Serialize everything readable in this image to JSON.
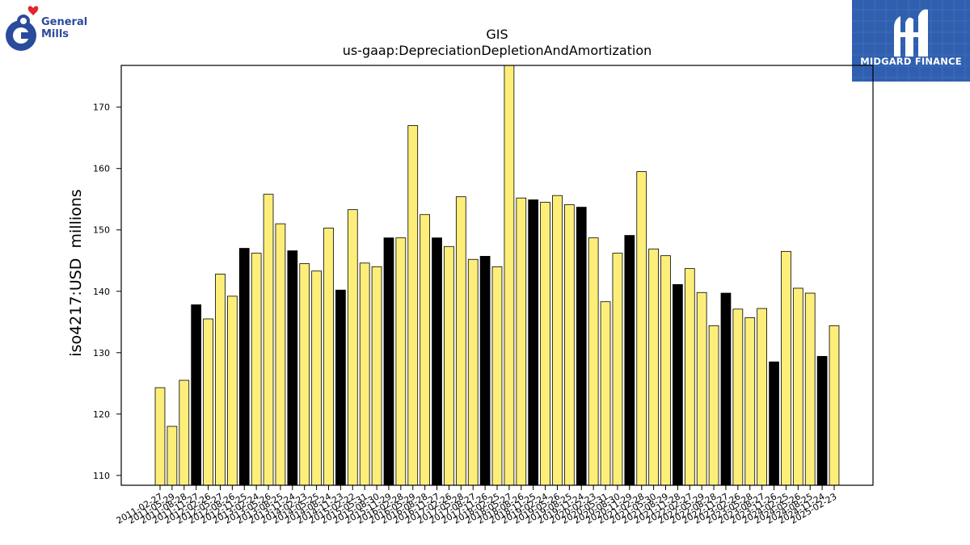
{
  "logos": {
    "left": {
      "line1": "General",
      "line2": "Mills",
      "icon": "general-mills-g-heart-logo",
      "color": "#2a4b9b",
      "heart_color": "#e2262f"
    },
    "right": {
      "text": "MIDGARD FINANCE",
      "icon": "midgard-finance-logo",
      "background": "#2f5fae"
    }
  },
  "chart_data": {
    "type": "bar",
    "title": "GIS",
    "subtitle": "us-gaap:DepreciationDepletionAndAmortization",
    "ylabel": "iso4217:USD  millions",
    "xlabel": "",
    "ylim": [
      108.4,
      176.8
    ],
    "yticks": [
      110,
      120,
      130,
      140,
      150,
      160,
      170
    ],
    "grid": false,
    "legend": "none",
    "colors": {
      "quarter": "#fdee7a",
      "annual": "#000000"
    },
    "categories": [
      "2011-02-27",
      "2011-05-29",
      "2011-08-28",
      "2011-11-27",
      "2012-02-26",
      "2012-05-27",
      "2012-08-26",
      "2012-11-25",
      "2013-02-24",
      "2013-05-26",
      "2013-08-25",
      "2013-11-24",
      "2014-02-23",
      "2014-05-25",
      "2014-08-24",
      "2014-11-23",
      "2015-02-22",
      "2015-05-31",
      "2015-08-30",
      "2015-11-29",
      "2016-02-28",
      "2016-05-29",
      "2016-08-28",
      "2016-11-27",
      "2017-02-26",
      "2017-05-28",
      "2017-08-27",
      "2017-11-26",
      "2018-02-25",
      "2018-05-27",
      "2018-08-26",
      "2018-11-25",
      "2019-02-24",
      "2019-05-26",
      "2019-08-25",
      "2019-11-24",
      "2020-02-23",
      "2020-05-31",
      "2020-08-30",
      "2020-11-29",
      "2021-02-28",
      "2021-05-30",
      "2021-08-29",
      "2021-11-28",
      "2022-02-27",
      "2022-05-29",
      "2022-08-28",
      "2022-11-27",
      "2023-02-26",
      "2023-05-28",
      "2023-08-27",
      "2023-11-26",
      "2024-02-25",
      "2024-05-26",
      "2024-08-25",
      "2024-11-24",
      "2025-02-23"
    ],
    "values": [
      124.3,
      118.0,
      125.5,
      137.8,
      135.5,
      142.8,
      139.2,
      147.0,
      146.2,
      155.8,
      151.0,
      146.6,
      144.5,
      143.3,
      150.3,
      140.2,
      153.3,
      144.6,
      144.0,
      148.7,
      148.7,
      167.0,
      152.5,
      148.7,
      147.3,
      155.4,
      145.2,
      145.7,
      144.0,
      177.0,
      155.2,
      154.9,
      154.5,
      155.6,
      154.1,
      153.7,
      148.7,
      138.3,
      146.2,
      149.1,
      159.5,
      146.9,
      145.8,
      141.1,
      143.7,
      139.8,
      134.4,
      139.7,
      137.1,
      135.7,
      137.2,
      128.5,
      146.5,
      140.5,
      139.7,
      129.4,
      134.4
    ],
    "annual_flags": [
      0,
      0,
      0,
      1,
      0,
      0,
      0,
      1,
      0,
      0,
      0,
      1,
      0,
      0,
      0,
      1,
      0,
      0,
      0,
      1,
      0,
      0,
      0,
      1,
      0,
      0,
      0,
      1,
      0,
      0,
      0,
      1,
      0,
      0,
      0,
      1,
      0,
      0,
      0,
      1,
      0,
      0,
      0,
      1,
      0,
      0,
      0,
      1,
      0,
      0,
      0,
      1,
      0,
      0,
      0,
      1,
      0
    ]
  }
}
